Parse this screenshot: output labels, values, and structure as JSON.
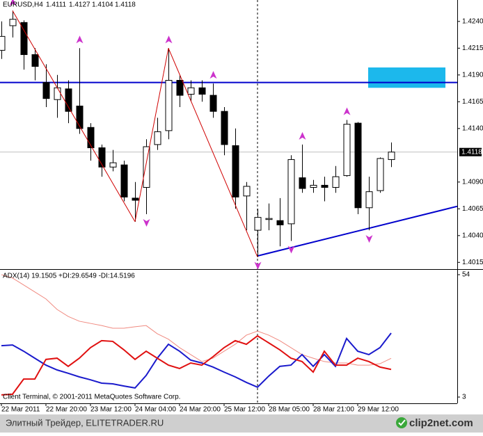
{
  "header": {
    "symbol": "EURUSD,H4"
  },
  "chart_data": [
    {
      "type": "candlestick",
      "categories": [
        "22 Mar 2011",
        null,
        null,
        null,
        "22 Mar 20:00",
        null,
        null,
        null,
        "23 Mar 12:00",
        null,
        null,
        null,
        "24 Mar 04:00",
        null,
        null,
        null,
        "24 Mar 20:00",
        null,
        null,
        null,
        "25 Mar 12:00",
        null,
        null,
        null,
        "28 Mar 05:00",
        null,
        null,
        null,
        "28 Mar 21:00",
        null,
        null,
        null,
        "29 Mar 12:00",
        null,
        null,
        null
      ],
      "open": [
        1.4213,
        1.4236,
        1.4239,
        1.4209,
        1.4183,
        1.4167,
        1.4177,
        1.4161,
        1.4141,
        1.4122,
        1.4104,
        1.4106,
        1.4075,
        1.4085,
        1.4125,
        1.4138,
        1.4185,
        1.4172,
        1.4178,
        1.4171,
        1.4156,
        1.4124,
        1.4077,
        1.4045,
        1.4055,
        1.4054,
        1.4051,
        1.4094,
        1.4085,
        1.4087,
        1.4085,
        1.4096,
        1.4145,
        1.4066,
        1.4082,
        1.4111
      ],
      "high": [
        1.424,
        1.425,
        1.4241,
        1.4215,
        1.42,
        1.419,
        1.4185,
        1.4215,
        1.4145,
        1.4125,
        1.412,
        1.411,
        1.409,
        1.413,
        1.415,
        1.4215,
        1.419,
        1.4185,
        1.4185,
        1.4182,
        1.416,
        1.414,
        1.409,
        1.4065,
        1.407,
        1.4075,
        1.4115,
        1.4125,
        1.4092,
        1.4095,
        1.4105,
        1.4148,
        1.4146,
        1.4095,
        1.4113,
        1.4127
      ],
      "low": [
        1.4205,
        1.4225,
        1.4195,
        1.4185,
        1.416,
        1.415,
        1.4145,
        1.4135,
        1.411,
        1.4095,
        1.41,
        1.4072,
        1.4053,
        1.406,
        1.412,
        1.413,
        1.416,
        1.4165,
        1.4165,
        1.415,
        1.4115,
        1.4065,
        1.4045,
        1.402,
        1.4045,
        1.403,
        1.4035,
        1.408,
        1.408,
        1.4072,
        1.408,
        1.4095,
        1.406,
        1.4045,
        1.408,
        1.4104
      ],
      "close": [
        1.4226,
        1.4242,
        1.4209,
        1.4198,
        1.4168,
        1.4178,
        1.4156,
        1.414,
        1.4122,
        1.4104,
        1.4108,
        1.4076,
        1.4073,
        1.4123,
        1.4137,
        1.4185,
        1.4171,
        1.4178,
        1.4172,
        1.4156,
        1.4125,
        1.4076,
        1.4086,
        1.4057,
        1.4056,
        1.405,
        1.4111,
        1.4084,
        1.4087,
        1.4085,
        1.4095,
        1.4144,
        1.4066,
        1.4081,
        1.4112,
        1.4118
      ],
      "ylim": [
        1.401,
        1.426
      ],
      "yticks": [
        {
          "value": 1.424,
          "label": "1.4240"
        },
        1.4215,
        {
          "value": 1.419,
          "label": "1.4190"
        },
        1.4165,
        {
          "value": 1.414,
          "label": "1.4140"
        },
        {
          "value": 1.409,
          "label": "1.4090"
        },
        1.4065,
        {
          "value": 1.404,
          "label": "1.4040"
        },
        1.4015
      ],
      "level": 1.4183,
      "level_color": "#0000cc",
      "zone": [
        1.4178,
        1.4197
      ],
      "zone_color": "#1cb8ec",
      "trendline": [
        null,
        null,
        null,
        null,
        null,
        null,
        null,
        null,
        null,
        null,
        null,
        null,
        null,
        null,
        null,
        null,
        null,
        null,
        null,
        null,
        null,
        null,
        null,
        1.4021,
        null,
        null,
        null,
        null,
        null,
        null,
        null,
        null,
        null,
        null,
        null,
        1.4052
      ],
      "trendline_color": "#0000cc",
      "zigzag": [
        null,
        1.425,
        null,
        null,
        null,
        null,
        null,
        null,
        null,
        null,
        null,
        null,
        1.4053,
        null,
        null,
        1.4215,
        null,
        null,
        null,
        null,
        null,
        null,
        null,
        1.402,
        null,
        null,
        null,
        null,
        null,
        null,
        null,
        null,
        null,
        null,
        null,
        null
      ],
      "zigzag_color": "#d00000",
      "fractals_up": [
        null,
        1.425,
        null,
        null,
        null,
        null,
        null,
        1.4215,
        null,
        null,
        null,
        null,
        null,
        null,
        null,
        1.4215,
        null,
        null,
        null,
        1.4182,
        null,
        null,
        null,
        null,
        null,
        null,
        null,
        1.4125,
        null,
        null,
        null,
        1.4148,
        null,
        null,
        null,
        null
      ],
      "fractals_down": [
        null,
        null,
        null,
        null,
        null,
        null,
        null,
        null,
        null,
        null,
        null,
        null,
        null,
        1.406,
        null,
        null,
        null,
        null,
        null,
        null,
        null,
        null,
        null,
        1.402,
        null,
        null,
        1.4035,
        null,
        null,
        null,
        null,
        null,
        null,
        1.4045,
        null,
        null
      ],
      "fractal_color": "#cc33cc"
    },
    {
      "type": "line",
      "title": "ADX(14) 19.1505 +DI:29.6549 -DI:14.5196",
      "ylim": [
        3,
        54
      ],
      "yticks": [
        54,
        3
      ],
      "series": [
        {
          "color": "#f08a80",
          "width": 1,
          "values": [
            54.0,
            52.6,
            49.7,
            46.8,
            43.9,
            39.5,
            36.6,
            34.6,
            33.7,
            32.8,
            31.7,
            31.7,
            32.3,
            32.8,
            29.4,
            27.1,
            23.6,
            20.7,
            17.8,
            19.2,
            22.1,
            25.0,
            28.8,
            30.5,
            28.8,
            26.5,
            23.6,
            20.7,
            19.2,
            17.8,
            17.2,
            17.2,
            16.3,
            16.3,
            16.9,
            19.1505
          ]
        },
        {
          "color": "#1a1acc",
          "width": 2,
          "values": [
            24.4,
            24.7,
            22.1,
            19.2,
            16.3,
            14.3,
            12.9,
            11.4,
            10.2,
            8.8,
            8.5,
            7.6,
            6.8,
            12.0,
            19.2,
            25.0,
            22.1,
            18.4,
            17.2,
            15.5,
            13.4,
            11.4,
            9.1,
            7.1,
            11.7,
            15.8,
            16.3,
            20.7,
            15.8,
            20.7,
            15.8,
            27.4,
            22.1,
            20.7,
            23.6,
            29.6549
          ]
        },
        {
          "color": "#e01010",
          "width": 2,
          "values": [
            3.9,
            4.2,
            10.5,
            10.5,
            18.7,
            19.2,
            15.8,
            19.2,
            23.6,
            26.5,
            26.2,
            22.7,
            18.7,
            22.1,
            19.2,
            16.3,
            14.9,
            17.2,
            16.3,
            19.8,
            23.6,
            26.5,
            25.0,
            28.5,
            25.6,
            22.7,
            19.2,
            17.8,
            13.4,
            22.1,
            16.3,
            16.3,
            19.2,
            17.8,
            15.5,
            14.5196
          ]
        }
      ]
    }
  ],
  "copyright": "Client Terminal, © 2001-2011 MetaQuotes Software Corp.",
  "footer": {
    "site": "Элитный Трейдер, ELITETRADER.RU",
    "logo": "clip2net.com"
  }
}
